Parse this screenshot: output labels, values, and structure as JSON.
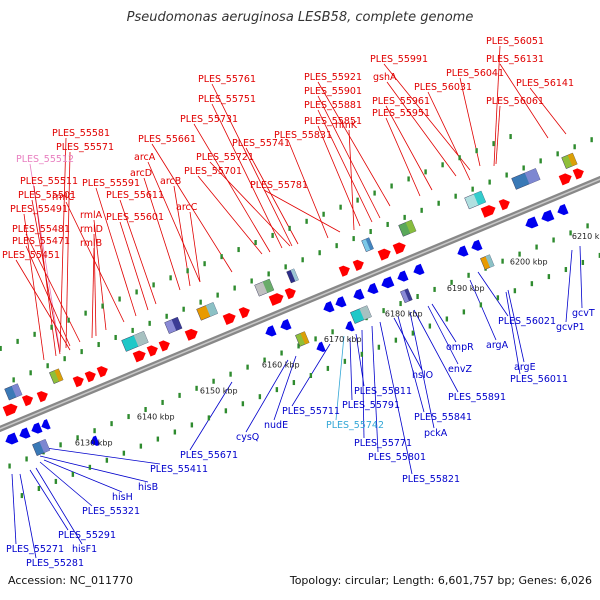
{
  "title": "Pseudomonas aeruginosa LESB58, complete genome",
  "accession": "Accession: NC_011770",
  "summary": "Topology: circular; Length: 6,601,757 bp; Genes: 6,026",
  "colors": {
    "forward_label": "#e00000",
    "reverse_label": "#0000cc",
    "pseudo_label": "#e87fc0",
    "pseudo_label_rev": "#33a7d6",
    "axis": "#888888",
    "tick": "#2e8b2e"
  },
  "scale": {
    "ticks": [
      "6130 kbp",
      "6140 kbp",
      "6150 kbp",
      "6160 kbp",
      "6170 kbp",
      "6180 kbp",
      "6190 kbp",
      "6200 kbp",
      "6210 kbp"
    ]
  },
  "labels_top": [
    "PLES_56051",
    "PLES_55991",
    "PLES_56131",
    "gshA",
    "PLES_56041",
    "PLES_56141",
    "PLES_55761",
    "PLES_55921",
    "PLES_56031",
    "PLES_55901",
    "PLES_55751",
    "PLES_55881",
    "PLES_55961",
    "PLES_56061",
    "PLES_55731",
    "PLES_55951",
    "PLES_55851",
    "rimK",
    "PLES_55741",
    "PLES_55581",
    "PLES_55661",
    "PLES_55831",
    "PLES_55571",
    "arcA",
    "PLES_55721",
    "PLES_55512",
    "arcD",
    "PLES_55701",
    "PLES_55781",
    "PLES_55511",
    "rmlC",
    "PLES_55591",
    "arcB",
    "PLES_55501",
    "PLES_55611",
    "PLES_55491",
    "rmlA",
    "PLES_55601",
    "arcC",
    "rmlD",
    "PLES_55481",
    "PLES_55471",
    "rmlB",
    "PLES_55451"
  ],
  "labels_bottom": [
    "PLES_56021",
    "argA",
    "gcvT",
    "gcvP1",
    "argE",
    "PLES_56011",
    "ompR",
    "envZ",
    "hslO",
    "PLES_55891",
    "PLES_55811",
    "PLES_55791",
    "PLES_55841",
    "PLES_55742",
    "pckA",
    "PLES_55711",
    "nudE",
    "cysQ",
    "PLES_55771",
    "PLES_55801",
    "PLES_55671",
    "PLES_55821",
    "PLES_55411",
    "hisB",
    "hisH",
    "PLES_55321",
    "PLES_55291",
    "hisF1",
    "PLES_55271",
    "PLES_55281"
  ]
}
